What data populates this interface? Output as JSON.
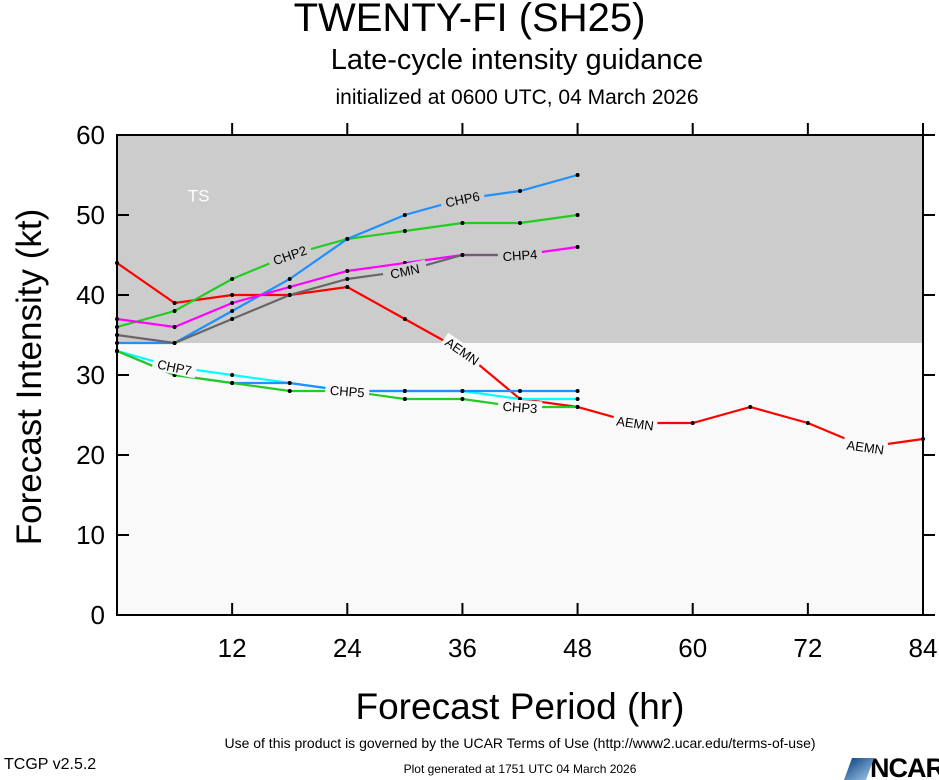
{
  "chart_data": {
    "type": "line",
    "title": "TWENTY-FI (SH25)",
    "subtitle": "Late-cycle intensity guidance",
    "subtitle2": "initialized at 0600 UTC, 04 March 2026",
    "xlabel": "Forecast Period (hr)",
    "ylabel": "Forecast Intensity (kt)",
    "xlim": [
      0,
      84
    ],
    "ylim": [
      0,
      60
    ],
    "xticks": [
      12,
      24,
      36,
      48,
      60,
      72,
      84
    ],
    "yticks": [
      0,
      10,
      20,
      30,
      40,
      50,
      60
    ],
    "bands": [
      {
        "label": "TS",
        "from": 34,
        "to": 60,
        "color": "#cccccc"
      },
      {
        "label": "",
        "from": 0,
        "to": 34,
        "color": "#f9f9f9"
      }
    ],
    "series": [
      {
        "name": "AEMN",
        "color": "#ff0000",
        "x": [
          0,
          6,
          12,
          18,
          24,
          30,
          36,
          42,
          48,
          54,
          60,
          66,
          72,
          78,
          84
        ],
        "values": [
          44,
          39,
          40,
          40,
          41,
          37,
          33,
          27,
          26,
          24,
          24,
          26,
          24,
          21,
          22
        ]
      },
      {
        "name": "CHP2",
        "color": "#22cc22",
        "x": [
          0,
          6,
          12,
          18,
          24,
          30,
          36,
          42,
          48
        ],
        "values": [
          36,
          38,
          42,
          45,
          47,
          48,
          49,
          49,
          50
        ]
      },
      {
        "name": "CHP6",
        "color": "#1e90ff",
        "x": [
          0,
          6,
          12,
          18,
          24,
          30,
          36,
          42,
          48
        ],
        "values": [
          34,
          34,
          38,
          42,
          47,
          50,
          52,
          53,
          55
        ]
      },
      {
        "name": "CHP4",
        "color": "#ff00ff",
        "x": [
          0,
          6,
          12,
          18,
          24,
          30,
          36,
          42,
          48
        ],
        "values": [
          37,
          36,
          39,
          41,
          43,
          44,
          45,
          45,
          46
        ]
      },
      {
        "name": "CMN",
        "color": "#666666",
        "x": [
          0,
          6,
          12,
          18,
          24,
          30,
          36,
          42
        ],
        "values": [
          35,
          34,
          37,
          40,
          42,
          43,
          45,
          45
        ]
      },
      {
        "name": "CHP7",
        "color": "#00ffff",
        "x": [
          0,
          6,
          12,
          18,
          24,
          30,
          36,
          42,
          48
        ],
        "values": [
          33,
          31,
          30,
          29,
          28,
          28,
          28,
          27,
          27
        ]
      },
      {
        "name": "CHP5",
        "color": "#1e90ff",
        "x": [
          0,
          6,
          12,
          18,
          24,
          30,
          36,
          42,
          48
        ],
        "values": [
          33,
          30,
          29,
          29,
          28,
          28,
          28,
          28,
          28
        ]
      },
      {
        "name": "CHP3",
        "color": "#22cc22",
        "x": [
          0,
          6,
          12,
          18,
          24,
          30,
          36,
          42,
          48
        ],
        "values": [
          33,
          30,
          29,
          28,
          28,
          27,
          27,
          26,
          26
        ]
      }
    ]
  },
  "footer": {
    "version": "TCGP v2.5.2",
    "terms": "Use of this product is governed by the UCAR Terms of Use (http://www2.ucar.edu/terms-of-use)",
    "generated": "Plot generated at 1751 UTC   04 March 2026",
    "logo": "NCAR"
  }
}
